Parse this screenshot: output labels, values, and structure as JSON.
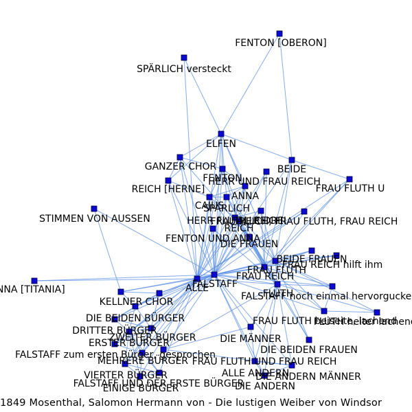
{
  "caption": "1849 Mosenthal, Salomon Hermann von - Die lustigen Weiber von Windsor",
  "colors": {
    "edge": "#5b8fe6",
    "node": "#0a0ad2",
    "label": "#000000"
  },
  "nodes": [
    {
      "id": "fenton_oberon",
      "label": "FENTON [OBERON]"
    },
    {
      "id": "sparlich_versteckt",
      "label": "SPÄRLICH versteckt"
    },
    {
      "id": "elfen",
      "label": "ELFEN"
    },
    {
      "id": "ganzer_chor",
      "label": "GANZER CHOR"
    },
    {
      "id": "beide",
      "label": "BEIDE"
    },
    {
      "id": "herr_frau_reich",
      "label": "HERR UND FRAU REICH"
    },
    {
      "id": "fenton",
      "label": "FENTON"
    },
    {
      "id": "reich_herne",
      "label": "REICH [HERNE]"
    },
    {
      "id": "frau_fluth_u",
      "label": "FRAU FLUTH U"
    },
    {
      "id": "anna",
      "label": "ANNA"
    },
    {
      "id": "cajus",
      "label": "CAJUS"
    },
    {
      "id": "sparlich",
      "label": "SPÄRLICH"
    },
    {
      "id": "stimmen",
      "label": "STIMMEN VON AUSSEN"
    },
    {
      "id": "herr_fluth_reich",
      "label": "HERR FLUTH, REICH"
    },
    {
      "id": "alle_drei",
      "label": "ALLE DREI"
    },
    {
      "id": "frau_reich_fluth",
      "label": "FRAU REICH, FRAU FLUTH, FRAU REICH"
    },
    {
      "id": "reich",
      "label": "REICH"
    },
    {
      "id": "fenton_anna",
      "label": "FENTON UND ANNA"
    },
    {
      "id": "die_frauen",
      "label": "DIE FRAUEN"
    },
    {
      "id": "beide_frauen",
      "label": "BEIDE FRAUEN"
    },
    {
      "id": "frau_reich_hilft",
      "label": "FRAU REICH hilft ihm"
    },
    {
      "id": "frau_fluth",
      "label": "FRAU FLUTH"
    },
    {
      "id": "frau_reich",
      "label": "FRAU REICH"
    },
    {
      "id": "anna_titania",
      "label": "ANNA [TITANIA]"
    },
    {
      "id": "falstaff",
      "label": "FALSTAFF"
    },
    {
      "id": "alle",
      "label": "ALLE"
    },
    {
      "id": "fluth",
      "label": "FLUTH"
    },
    {
      "id": "falstaff_hervor",
      "label": "FALSTAFF noch einmal hervorguckend"
    },
    {
      "id": "kellner",
      "label": "KELLNER"
    },
    {
      "id": "chor",
      "label": "CHOR"
    },
    {
      "id": "die_beiden_burger",
      "label": "DIE BEIDEN BÜRGER"
    },
    {
      "id": "fluth_beiseite",
      "label": "FRAU FLUTH beiseite, lachend"
    },
    {
      "id": "fluth_nach",
      "label": "FLUTH heiter lachend nach"
    },
    {
      "id": "dritter_burger",
      "label": "DRITTER BÜRGER"
    },
    {
      "id": "zweiter_burger",
      "label": "ZWEITER BÜRGER"
    },
    {
      "id": "die_manner",
      "label": "DIE MÄNNER"
    },
    {
      "id": "erster_burger",
      "label": "ERSTER BÜRGER"
    },
    {
      "id": "die_beiden_frauen",
      "label": "DIE BEIDEN FRAUEN"
    },
    {
      "id": "falstaff_ersten",
      "label": "FALSTAFF zum ersten Bürger, gesprochen"
    },
    {
      "id": "mehrere_burger",
      "label": "MEHRERE BÜRGER"
    },
    {
      "id": "frau_fluth_frau_reich",
      "label": "FRAU FLUTH UND FRAU REICH"
    },
    {
      "id": "alle_andern",
      "label": "ALLE ANDERN"
    },
    {
      "id": "vierter_burger",
      "label": "VIERTER BÜRGER"
    },
    {
      "id": "die_andern_manner",
      "label": "DIE ANDERN MÄNNER"
    },
    {
      "id": "falstaff_erste_burger",
      "label": "FALSTAFF UND DER ERSTE BÜRGER"
    },
    {
      "id": "die_andern",
      "label": "DIE ANDERN"
    },
    {
      "id": "einige_burger",
      "label": "EINIGE BÜRGER"
    }
  ],
  "edges": [
    [
      "fenton_oberon",
      "elfen"
    ],
    [
      "fenton_oberon",
      "beide"
    ],
    [
      "sparlich_versteckt",
      "elfen"
    ],
    [
      "sparlich_versteckt",
      "alle"
    ],
    [
      "elfen",
      "ganzer_chor"
    ],
    [
      "elfen",
      "fenton"
    ],
    [
      "elfen",
      "anna"
    ],
    [
      "elfen",
      "falstaff"
    ],
    [
      "elfen",
      "alle"
    ],
    [
      "elfen",
      "reich_herne"
    ],
    [
      "elfen",
      "beide"
    ],
    [
      "elfen",
      "sparlich"
    ],
    [
      "elfen",
      "frau_fluth"
    ],
    [
      "ganzer_chor",
      "falstaff"
    ],
    [
      "ganzer_chor",
      "alle"
    ],
    [
      "ganzer_chor",
      "reich_herne"
    ],
    [
      "ganzer_chor",
      "fenton"
    ],
    [
      "ganzer_chor",
      "die_frauen"
    ],
    [
      "beide",
      "frau_fluth_u"
    ],
    [
      "beide",
      "falstaff"
    ],
    [
      "beide",
      "frau_reich"
    ],
    [
      "beide",
      "frau_fluth"
    ],
    [
      "frau_fluth_u",
      "frau_fluth"
    ],
    [
      "frau_fluth_u",
      "frau_reich"
    ],
    [
      "frau_fluth_u",
      "alle"
    ],
    [
      "herr_frau_reich",
      "falstaff"
    ],
    [
      "herr_frau_reich",
      "alle"
    ],
    [
      "herr_frau_reich",
      "frau_reich"
    ],
    [
      "fenton",
      "anna"
    ],
    [
      "fenton",
      "alle"
    ],
    [
      "fenton",
      "falstaff"
    ],
    [
      "fenton",
      "reich"
    ],
    [
      "fenton",
      "cajus"
    ],
    [
      "fenton",
      "frau_reich"
    ],
    [
      "reich_herne",
      "falstaff"
    ],
    [
      "reich_herne",
      "alle"
    ],
    [
      "reich_herne",
      "cajus"
    ],
    [
      "anna",
      "alle"
    ],
    [
      "anna",
      "falstaff"
    ],
    [
      "anna",
      "reich"
    ],
    [
      "anna",
      "cajus"
    ],
    [
      "anna",
      "sparlich"
    ],
    [
      "cajus",
      "sparlich"
    ],
    [
      "cajus",
      "reich"
    ],
    [
      "cajus",
      "fluth"
    ],
    [
      "cajus",
      "alle"
    ],
    [
      "cajus",
      "falstaff"
    ],
    [
      "sparlich",
      "reich"
    ],
    [
      "sparlich",
      "alle"
    ],
    [
      "sparlich",
      "fluth"
    ],
    [
      "sparlich",
      "falstaff"
    ],
    [
      "sparlich",
      "frau_fluth"
    ],
    [
      "stimmen",
      "falstaff"
    ],
    [
      "stimmen",
      "kellner"
    ],
    [
      "herr_fluth_reich",
      "alle_drei"
    ],
    [
      "herr_fluth_reich",
      "fluth"
    ],
    [
      "herr_fluth_reich",
      "frau_reich"
    ],
    [
      "alle_drei",
      "frau_fluth"
    ],
    [
      "alle_drei",
      "frau_reich"
    ],
    [
      "alle_drei",
      "falstaff"
    ],
    [
      "frau_reich_fluth",
      "frau_fluth"
    ],
    [
      "frau_reich_fluth",
      "falstaff"
    ],
    [
      "frau_reich_fluth",
      "alle"
    ],
    [
      "reich",
      "fluth"
    ],
    [
      "reich",
      "falstaff"
    ],
    [
      "reich",
      "alle"
    ],
    [
      "reich",
      "frau_reich"
    ],
    [
      "reich",
      "die_frauen"
    ],
    [
      "fenton_anna",
      "alle"
    ],
    [
      "fenton_anna",
      "falstaff"
    ],
    [
      "fenton_anna",
      "fluth"
    ],
    [
      "die_frauen",
      "falstaff"
    ],
    [
      "die_frauen",
      "frau_fluth"
    ],
    [
      "die_frauen",
      "frau_reich"
    ],
    [
      "die_frauen",
      "fluth"
    ],
    [
      "beide_frauen",
      "falstaff"
    ],
    [
      "beide_frauen",
      "frau_fluth"
    ],
    [
      "beide_frauen",
      "frau_reich"
    ],
    [
      "frau_reich_hilft",
      "falstaff"
    ],
    [
      "frau_reich_hilft",
      "frau_fluth"
    ],
    [
      "frau_reich_hilft",
      "frau_reich"
    ],
    [
      "frau_fluth",
      "frau_reich"
    ],
    [
      "frau_fluth",
      "falstaff"
    ],
    [
      "frau_fluth",
      "fluth"
    ],
    [
      "frau_fluth",
      "alle"
    ],
    [
      "frau_fluth",
      "falstaff_hervor"
    ],
    [
      "frau_fluth",
      "fluth_beiseite"
    ],
    [
      "frau_fluth",
      "fluth_nach"
    ],
    [
      "frau_fluth",
      "die_beiden_frauen"
    ],
    [
      "frau_reich",
      "falstaff"
    ],
    [
      "frau_reich",
      "fluth"
    ],
    [
      "frau_reich",
      "alle"
    ],
    [
      "frau_reich",
      "falstaff_hervor"
    ],
    [
      "frau_reich",
      "fluth_beiseite"
    ],
    [
      "frau_reich",
      "die_beiden_frauen"
    ],
    [
      "anna_titania",
      "falstaff"
    ],
    [
      "anna_titania",
      "alle"
    ],
    [
      "falstaff",
      "alle"
    ],
    [
      "falstaff",
      "fluth"
    ],
    [
      "falstaff",
      "kellner"
    ],
    [
      "falstaff",
      "chor"
    ],
    [
      "falstaff",
      "die_beiden_burger"
    ],
    [
      "falstaff",
      "zweiter_burger"
    ],
    [
      "falstaff",
      "erster_burger"
    ],
    [
      "falstaff",
      "dritter_burger"
    ],
    [
      "falstaff",
      "mehrere_burger"
    ],
    [
      "falstaff",
      "die_manner"
    ],
    [
      "falstaff",
      "falstaff_hervor"
    ],
    [
      "falstaff",
      "fluth_beiseite"
    ],
    [
      "falstaff",
      "frau_fluth_frau_reich"
    ],
    [
      "falstaff",
      "alle_andern"
    ],
    [
      "falstaff",
      "die_andern_manner"
    ],
    [
      "falstaff",
      "die_andern"
    ],
    [
      "alle",
      "fluth"
    ],
    [
      "alle",
      "chor"
    ],
    [
      "alle",
      "kellner"
    ],
    [
      "alle",
      "die_beiden_burger"
    ],
    [
      "alle",
      "erster_burger"
    ],
    [
      "alle",
      "zweiter_burger"
    ],
    [
      "alle",
      "vierter_burger"
    ],
    [
      "alle",
      "einige_burger"
    ],
    [
      "alle",
      "mehrere_burger"
    ],
    [
      "alle",
      "falstaff_erste_burger"
    ],
    [
      "alle",
      "falstaff_ersten"
    ],
    [
      "fluth",
      "die_manner"
    ],
    [
      "fluth",
      "alle_andern"
    ],
    [
      "fluth",
      "die_andern"
    ],
    [
      "fluth",
      "frau_fluth_frau_reich"
    ],
    [
      "fluth",
      "die_andern_manner"
    ],
    [
      "fluth",
      "fluth_nach"
    ],
    [
      "fluth",
      "die_beiden_frauen"
    ],
    [
      "fluth",
      "falstaff_hervor"
    ],
    [
      "kellner",
      "chor"
    ],
    [
      "kellner",
      "die_beiden_burger"
    ],
    [
      "chor",
      "die_beiden_burger"
    ],
    [
      "chor",
      "dritter_burger"
    ],
    [
      "chor",
      "zweiter_burger"
    ],
    [
      "die_beiden_burger",
      "dritter_burger"
    ],
    [
      "die_beiden_burger",
      "erster_burger"
    ],
    [
      "die_beiden_burger",
      "zweiter_burger"
    ],
    [
      "dritter_burger",
      "zweiter_burger"
    ],
    [
      "dritter_burger",
      "erster_burger"
    ],
    [
      "zweiter_burger",
      "erster_burger"
    ],
    [
      "zweiter_burger",
      "falstaff_ersten"
    ],
    [
      "zweiter_burger",
      "mehrere_burger"
    ],
    [
      "zweiter_burger",
      "vierter_burger"
    ],
    [
      "erster_burger",
      "falstaff_ersten"
    ],
    [
      "erster_burger",
      "mehrere_burger"
    ],
    [
      "erster_burger",
      "vierter_burger"
    ],
    [
      "erster_burger",
      "falstaff_erste_burger"
    ],
    [
      "erster_burger",
      "einige_burger"
    ],
    [
      "falstaff_ersten",
      "mehrere_burger"
    ],
    [
      "mehrere_burger",
      "vierter_burger"
    ],
    [
      "mehrere_burger",
      "einige_burger"
    ],
    [
      "mehrere_burger",
      "falstaff_erste_burger"
    ],
    [
      "vierter_burger",
      "falstaff_erste_burger"
    ],
    [
      "vierter_burger",
      "einige_burger"
    ],
    [
      "falstaff_erste_burger",
      "einige_burger"
    ],
    [
      "die_manner",
      "frau_fluth_frau_reich"
    ],
    [
      "die_manner",
      "alle_andern"
    ],
    [
      "frau_fluth_frau_reich",
      "die_andern_manner"
    ],
    [
      "alle_andern",
      "die_andern"
    ],
    [
      "alle_andern",
      "die_andern_manner"
    ],
    [
      "die_andern_manner",
      "die_andern"
    ],
    [
      "falstaff_hervor",
      "fluth_beiseite"
    ],
    [
      "fluth_beiseite",
      "fluth_nach"
    ]
  ]
}
